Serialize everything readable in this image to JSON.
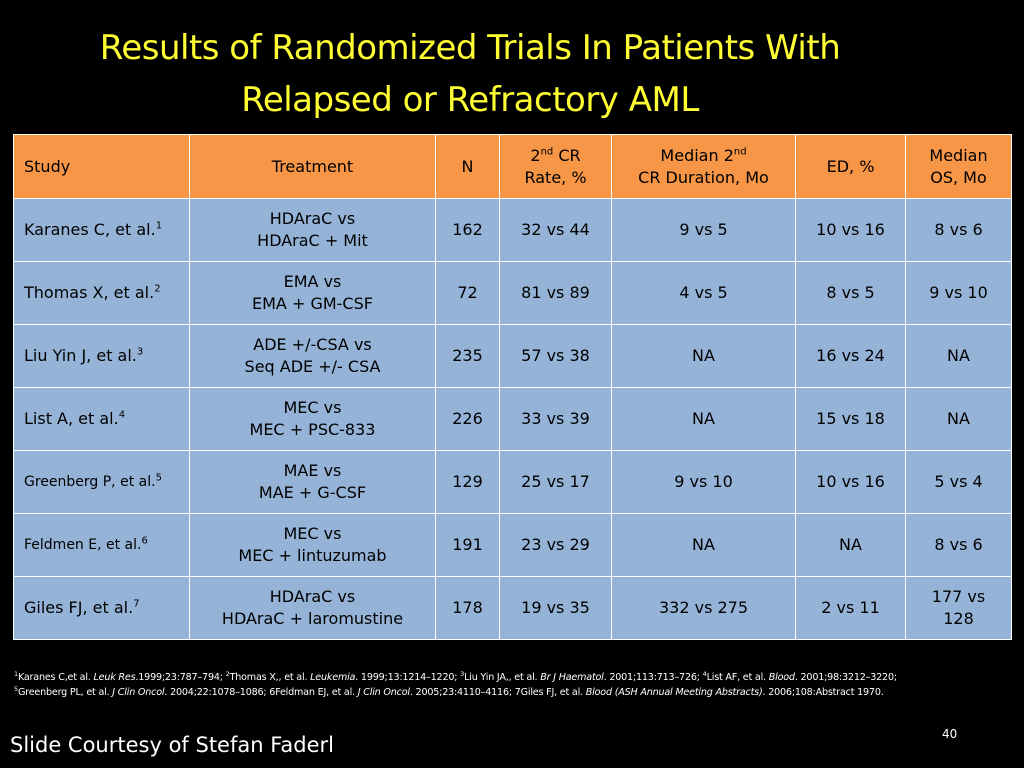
{
  "title": {
    "line1": "Results of Randomized Trials In Patients With",
    "line2": "Relapsed or Refractory AML"
  },
  "table": {
    "headers": {
      "study": "Study",
      "treatment": "Treatment",
      "n": "N",
      "cr_rate_pre": "2",
      "cr_rate_sup": "nd",
      "cr_rate_post": " CR",
      "cr_rate_line2": "Rate, %",
      "cr_duration_pre": "Median 2",
      "cr_duration_sup": "nd",
      "cr_duration_line2": "CR Duration, Mo",
      "ed": "ED, %",
      "os_line1": "Median",
      "os_line2": "OS, Mo"
    },
    "rows": [
      {
        "study": "Karanes C, et al.",
        "ref": "1",
        "treatment_line1": "HDAraC vs",
        "treatment_line2": "HDAraC + Mit",
        "n": "162",
        "cr_rate": "32 vs 44",
        "cr_duration": "9 vs 5",
        "ed": "10 vs 16",
        "os_line1": "8 vs 6",
        "os_line2": ""
      },
      {
        "study": "Thomas X, et al.",
        "ref": "2",
        "treatment_line1": "EMA vs",
        "treatment_line2": "EMA + GM-CSF",
        "n": "72",
        "cr_rate": "81 vs 89",
        "cr_duration": "4 vs 5",
        "ed": "8 vs 5",
        "os_line1": "9 vs 10",
        "os_line2": ""
      },
      {
        "study": "Liu Yin J, et al.",
        "ref": "3",
        "treatment_line1": "ADE +/-CSA vs",
        "treatment_line2": "Seq ADE +/- CSA",
        "n": "235",
        "cr_rate": "57 vs 38",
        "cr_duration": "NA",
        "ed": "16 vs 24",
        "os_line1": "NA",
        "os_line2": ""
      },
      {
        "study": "List A, et al.",
        "ref": "4",
        "treatment_line1": "MEC vs",
        "treatment_line2": "MEC + PSC-833",
        "n": "226",
        "cr_rate": "33 vs 39",
        "cr_duration": "NA",
        "ed": "15 vs 18",
        "os_line1": "NA",
        "os_line2": ""
      },
      {
        "study": "Greenberg P, et al.",
        "ref": "5",
        "treatment_line1": "MAE vs",
        "treatment_line2": "MAE + G-CSF",
        "n": "129",
        "cr_rate": "25 vs 17",
        "cr_duration": "9 vs 10",
        "ed": "10 vs 16",
        "os_line1": "5 vs 4",
        "os_line2": ""
      },
      {
        "study": "Feldmen E, et al.",
        "ref": "6",
        "treatment_line1": "MEC vs",
        "treatment_line2": "MEC + lintuzumab",
        "n": "191",
        "cr_rate": "23 vs 29",
        "cr_duration": "NA",
        "ed": "NA",
        "os_line1": "8 vs 6",
        "os_line2": ""
      },
      {
        "study": "Giles FJ, et al.",
        "ref": "7",
        "treatment_line1": "HDAraC vs",
        "treatment_line2": "HDAraC + laromustine",
        "n": "178",
        "cr_rate": "19 vs 35",
        "cr_duration": "332 vs 275",
        "ed": "2 vs 11",
        "os_line1": "177 vs",
        "os_line2": "128"
      }
    ]
  },
  "footnotes": {
    "line1": [
      {
        "t": "1",
        "s": "sup"
      },
      {
        "t": "Karanes C,et al. ",
        "s": "n"
      },
      {
        "t": "Leuk Res",
        "s": "i"
      },
      {
        "t": ".1999;23:787–794;  ",
        "s": "n"
      },
      {
        "t": "2",
        "s": "sup"
      },
      {
        "t": "Thomas X,, et al. ",
        "s": "n"
      },
      {
        "t": "Leukemia",
        "s": "i"
      },
      {
        "t": ". 1999;13:1214–1220; ",
        "s": "n"
      },
      {
        "t": "3",
        "s": "sup"
      },
      {
        "t": "Liu Yin JA,, et al. ",
        "s": "n"
      },
      {
        "t": "Br J Haematol",
        "s": "i"
      },
      {
        "t": ". 2001;113:713–726;  ",
        "s": "n"
      },
      {
        "t": "4",
        "s": "sup"
      },
      {
        "t": "List AF, et al. ",
        "s": "n"
      },
      {
        "t": "Blood",
        "s": "i"
      },
      {
        "t": ". 2001;98:3212–3220;",
        "s": "n"
      }
    ],
    "line2": [
      {
        "t": "5",
        "s": "sup"
      },
      {
        "t": "Greenberg PL, et al. ",
        "s": "n"
      },
      {
        "t": "J Clin Oncol",
        "s": "i"
      },
      {
        "t": ". 2004;22:1078–1086; 6Feldman EJ, et al. ",
        "s": "n"
      },
      {
        "t": "J Clin Oncol",
        "s": "i"
      },
      {
        "t": ". 2005;23:4110–4116;  7Giles FJ, et al. ",
        "s": "n"
      },
      {
        "t": "Blood (ASH Annual Meeting Abstracts)",
        "s": "i"
      },
      {
        "t": ". 2006;108:Abstract 1970.",
        "s": "n"
      }
    ]
  },
  "slide_number": "40",
  "courtesy": "Slide Courtesy of Stefan Faderl",
  "colors": {
    "background": "#000000",
    "title": "#ffff33",
    "header_fill": "#f79646",
    "row_fill": "#95b3d7",
    "border": "#ffffff"
  }
}
